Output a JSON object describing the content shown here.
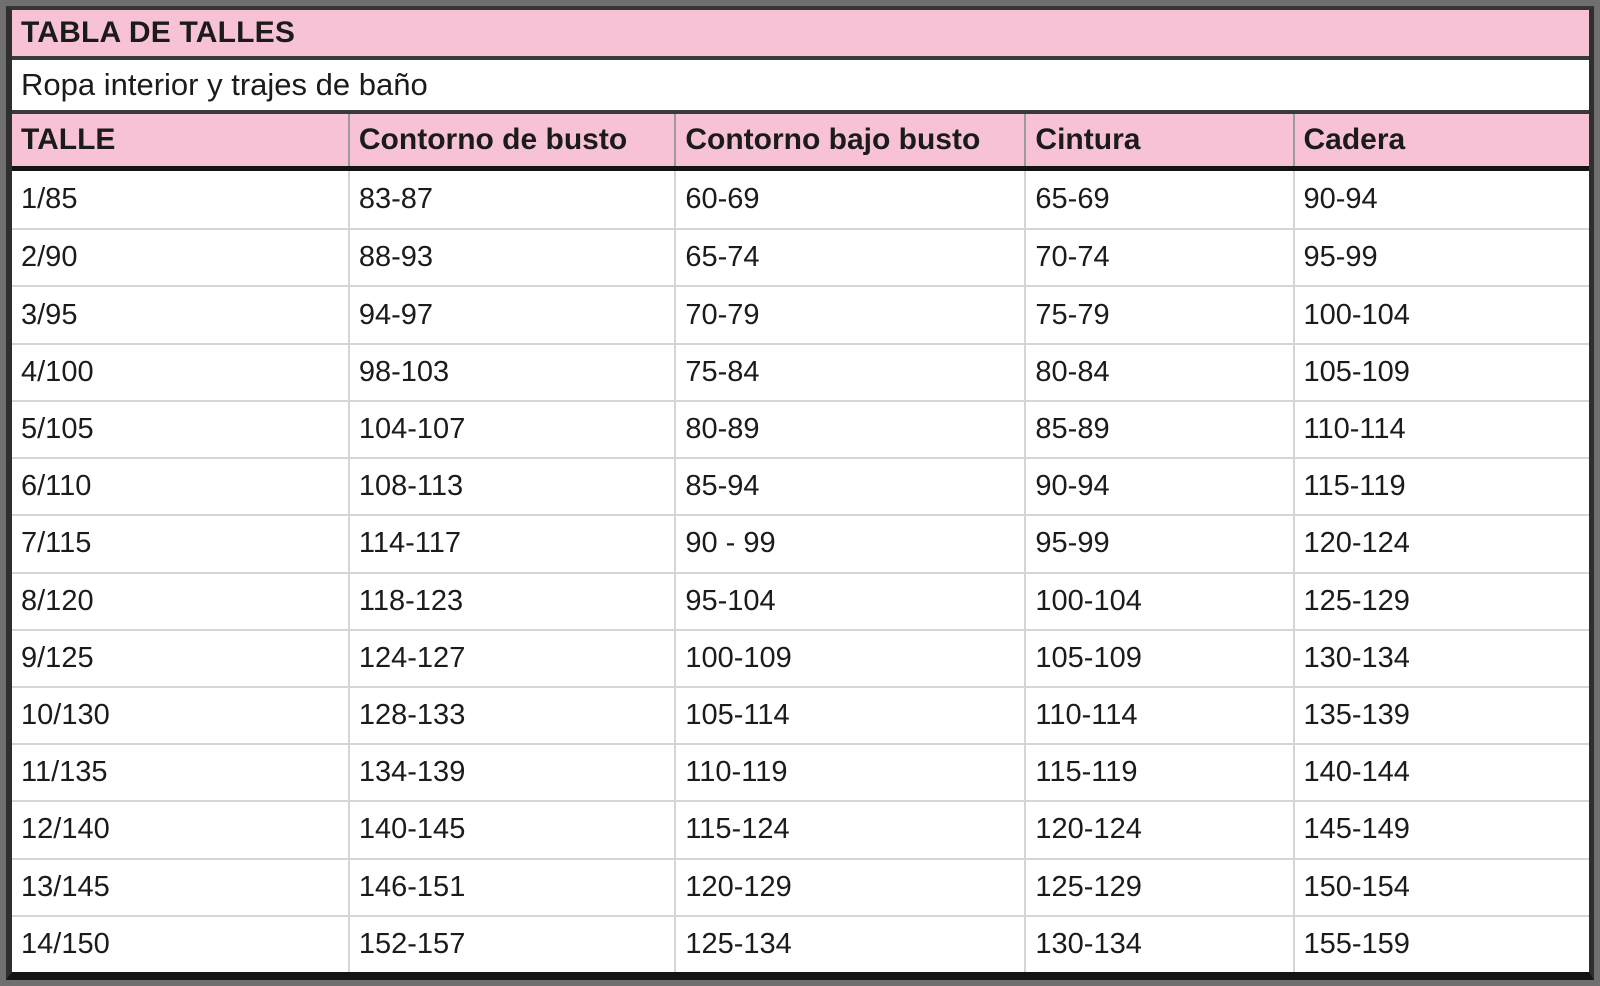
{
  "table": {
    "title": "TABLA DE TALLES",
    "subtitle": "Ropa interior y trajes de baño",
    "columns": [
      "TALLE",
      "Contorno de busto",
      "Contorno bajo busto",
      "Cintura",
      "Cadera"
    ],
    "rows": [
      [
        "1/85",
        "83-87",
        "60-69",
        "65-69",
        "90-94"
      ],
      [
        "2/90",
        "88-93",
        "65-74",
        "70-74",
        "95-99"
      ],
      [
        "3/95",
        "94-97",
        "70-79",
        "75-79",
        "100-104"
      ],
      [
        "4/100",
        "98-103",
        "75-84",
        "80-84",
        "105-109"
      ],
      [
        "5/105",
        "104-107",
        "80-89",
        "85-89",
        "110-114"
      ],
      [
        "6/110",
        "108-113",
        "85-94",
        "90-94",
        "115-119"
      ],
      [
        "7/115",
        "114-117",
        "90 - 99",
        "95-99",
        "120-124"
      ],
      [
        "8/120",
        "118-123",
        "95-104",
        "100-104",
        "125-129"
      ],
      [
        "9/125",
        "124-127",
        "100-109",
        "105-109",
        "130-134"
      ],
      [
        "10/130",
        "128-133",
        "105-114",
        "110-114",
        "135-139"
      ],
      [
        "11/135",
        "134-139",
        "110-119",
        "115-119",
        "140-144"
      ],
      [
        "12/140",
        "140-145",
        "115-124",
        "120-124",
        "145-149"
      ],
      [
        "13/145",
        "146-151",
        "120-129",
        "125-129",
        "150-154"
      ],
      [
        "14/150",
        "152-157",
        "125-134",
        "130-134",
        "155-159"
      ]
    ],
    "colors": {
      "pink_header": "#f7c2d6",
      "frame_gray": "#6f6f6f",
      "dark_border": "#363636",
      "black_border": "#141414",
      "light_divider": "#d5d5d5",
      "header_divider": "#9a9a9a",
      "text": "#1b1b1b"
    }
  },
  "chart_data": {
    "type": "table",
    "title": "TABLA DE TALLES",
    "subtitle": "Ropa interior y trajes de baño",
    "columns": [
      "TALLE",
      "Contorno de busto",
      "Contorno bajo busto",
      "Cintura",
      "Cadera"
    ],
    "rows": [
      [
        "1/85",
        "83-87",
        "60-69",
        "65-69",
        "90-94"
      ],
      [
        "2/90",
        "88-93",
        "65-74",
        "70-74",
        "95-99"
      ],
      [
        "3/95",
        "94-97",
        "70-79",
        "75-79",
        "100-104"
      ],
      [
        "4/100",
        "98-103",
        "75-84",
        "80-84",
        "105-109"
      ],
      [
        "5/105",
        "104-107",
        "80-89",
        "85-89",
        "110-114"
      ],
      [
        "6/110",
        "108-113",
        "85-94",
        "90-94",
        "115-119"
      ],
      [
        "7/115",
        "114-117",
        "90 - 99",
        "95-99",
        "120-124"
      ],
      [
        "8/120",
        "118-123",
        "95-104",
        "100-104",
        "125-129"
      ],
      [
        "9/125",
        "124-127",
        "100-109",
        "105-109",
        "130-134"
      ],
      [
        "10/130",
        "128-133",
        "105-114",
        "110-114",
        "135-139"
      ],
      [
        "11/135",
        "134-139",
        "110-119",
        "115-119",
        "140-144"
      ],
      [
        "12/140",
        "140-145",
        "115-124",
        "120-124",
        "145-149"
      ],
      [
        "13/145",
        "146-151",
        "120-129",
        "125-129",
        "150-154"
      ],
      [
        "14/150",
        "152-157",
        "125-134",
        "130-134",
        "155-159"
      ]
    ]
  }
}
